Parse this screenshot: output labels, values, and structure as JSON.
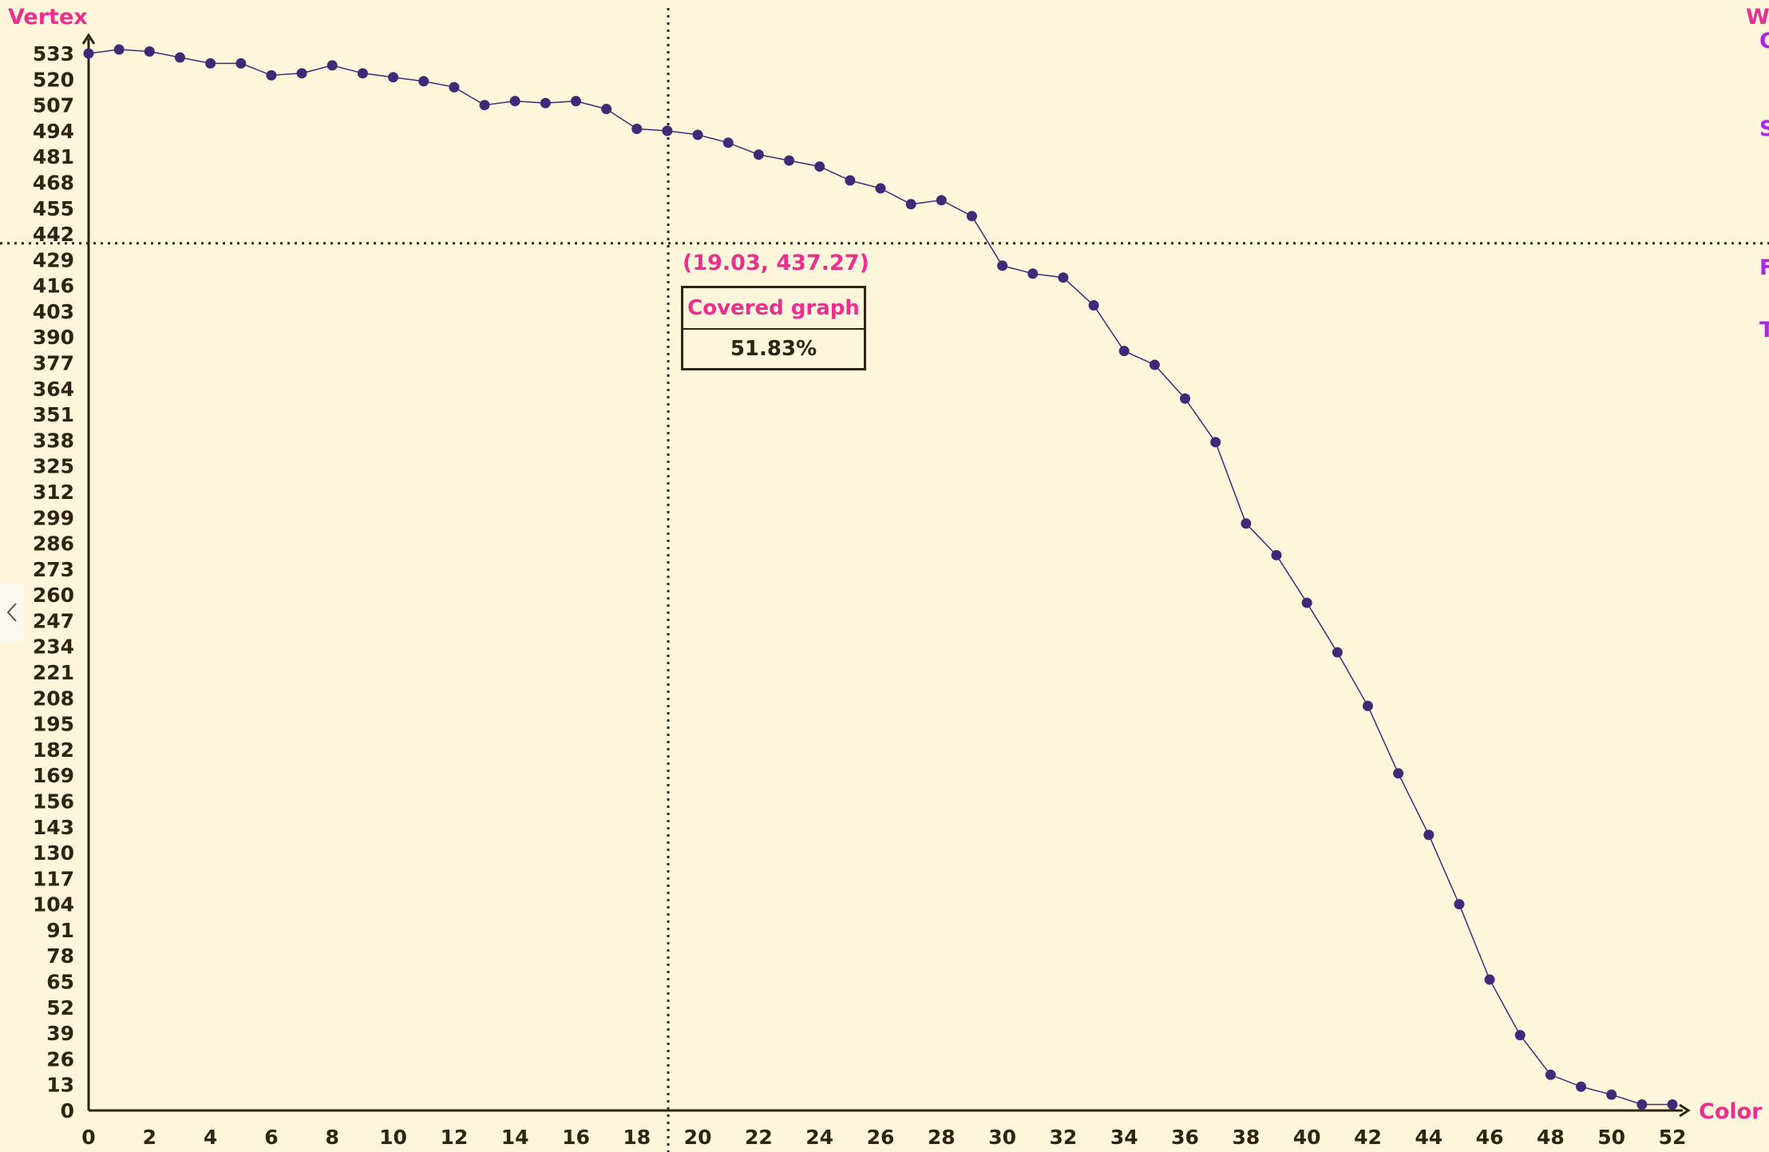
{
  "colors": {
    "background": "#fdf6da",
    "axis": "#2e2410",
    "series": "#3f2a78",
    "accent_pink": "#ec2f8e",
    "accent_purple": "#b023e8"
  },
  "chart_data": {
    "type": "line",
    "title": "",
    "xlabel": "Color",
    "ylabel": "Vertex",
    "xlim": [
      0,
      52
    ],
    "ylim": [
      0,
      533
    ],
    "x_ticks": [
      0,
      2,
      4,
      6,
      8,
      10,
      12,
      14,
      16,
      18,
      20,
      22,
      24,
      26,
      28,
      30,
      32,
      34,
      36,
      38,
      40,
      42,
      44,
      46,
      48,
      50,
      52
    ],
    "y_ticks": [
      0,
      13,
      26,
      39,
      52,
      65,
      78,
      91,
      104,
      117,
      130,
      143,
      156,
      169,
      182,
      195,
      208,
      221,
      234,
      247,
      260,
      273,
      286,
      299,
      312,
      325,
      338,
      351,
      364,
      377,
      390,
      403,
      416,
      429,
      442,
      455,
      468,
      481,
      494,
      507,
      520,
      533
    ],
    "grid": false,
    "series": [
      {
        "x": [
          0,
          1,
          2,
          3,
          4,
          5,
          6,
          7,
          8,
          9,
          10,
          11,
          12,
          13,
          14,
          15,
          16,
          17,
          18,
          19,
          20,
          21,
          22,
          23,
          24,
          25,
          26,
          27,
          28,
          29,
          30,
          31,
          32,
          33,
          34,
          35,
          36,
          37,
          38,
          39,
          40,
          41,
          42,
          43,
          44,
          45,
          46,
          47,
          48,
          49,
          50,
          51,
          52
        ],
        "values": [
          533,
          535,
          534,
          531,
          528,
          528,
          522,
          523,
          527,
          523,
          521,
          519,
          516,
          507,
          509,
          508,
          509,
          505,
          495,
          494,
          492,
          488,
          482,
          479,
          476,
          469,
          465,
          457,
          459,
          451,
          426,
          422,
          420,
          406,
          383,
          376,
          359,
          337,
          296,
          280,
          256,
          231,
          204,
          170,
          139,
          104,
          66,
          38,
          18,
          12,
          8,
          3,
          3
        ]
      }
    ],
    "crosshair": {
      "x": 19.03,
      "y": 437.27,
      "readout": "(19.03, 437.27)"
    },
    "tooltip": {
      "title": "Covered graph",
      "value": "51.83%"
    }
  },
  "right_edge_letters": [
    "W",
    "C",
    "S",
    "F",
    "T"
  ],
  "icons": {
    "collapse_tab": "chevron-left-icon"
  }
}
